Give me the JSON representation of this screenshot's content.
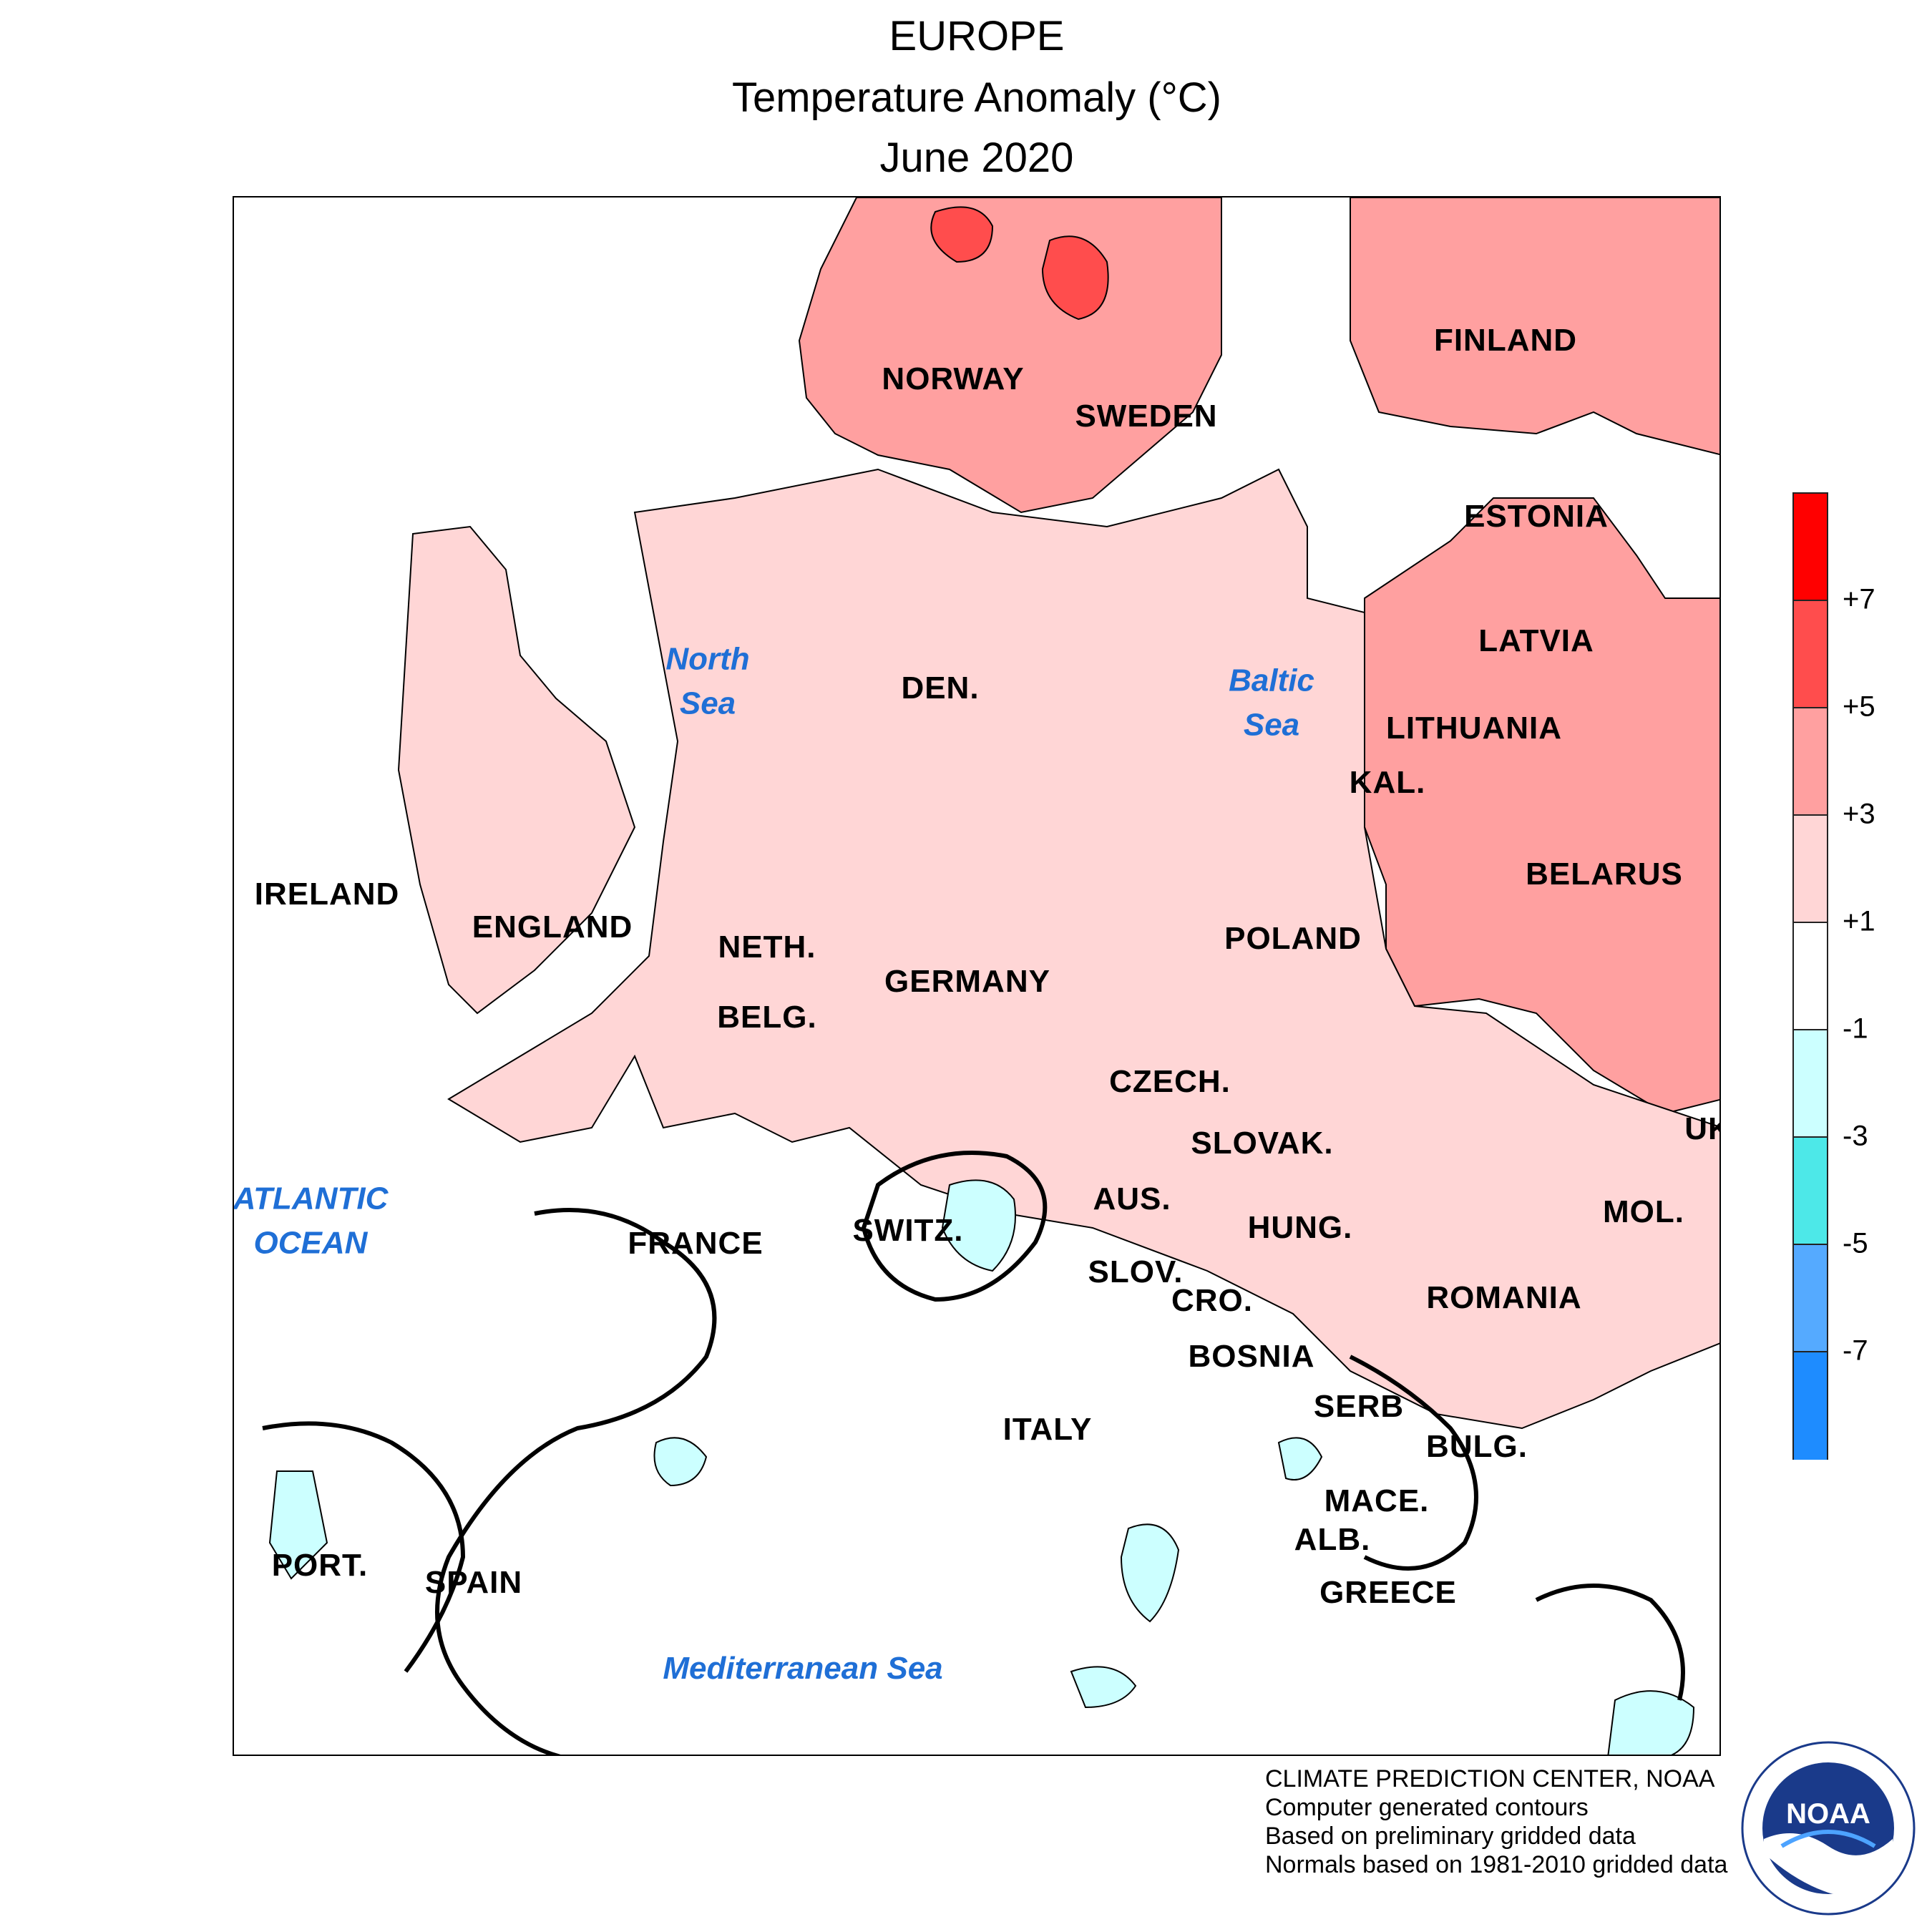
{
  "header": {
    "region": "EUROPE",
    "variable": "Temperature Anomaly (°C)",
    "period": "June 2020"
  },
  "map": {
    "countries": [
      {
        "key": "norway",
        "label": "NORWAY"
      },
      {
        "key": "sweden",
        "label": "SWEDEN"
      },
      {
        "key": "finland",
        "label": "FINLAND"
      },
      {
        "key": "estonia",
        "label": "ESTONIA"
      },
      {
        "key": "latvia",
        "label": "LATVIA"
      },
      {
        "key": "lithuania",
        "label": "LITHUANIA"
      },
      {
        "key": "kaliningrad",
        "label": "KAL."
      },
      {
        "key": "belarus",
        "label": "BELARUS"
      },
      {
        "key": "denmark",
        "label": "DEN."
      },
      {
        "key": "ireland",
        "label": "IRELAND"
      },
      {
        "key": "england",
        "label": "ENGLAND"
      },
      {
        "key": "netherlands",
        "label": "NETH."
      },
      {
        "key": "belgium",
        "label": "BELG."
      },
      {
        "key": "germany",
        "label": "GERMANY"
      },
      {
        "key": "poland",
        "label": "POLAND"
      },
      {
        "key": "czechia",
        "label": "CZECH."
      },
      {
        "key": "slovakia",
        "label": "SLOVAK."
      },
      {
        "key": "ukraine",
        "label": "UK"
      },
      {
        "key": "austria",
        "label": "AUS."
      },
      {
        "key": "hungary",
        "label": "HUNG."
      },
      {
        "key": "moldova",
        "label": "MOL."
      },
      {
        "key": "france",
        "label": "FRANCE"
      },
      {
        "key": "switzerland",
        "label": "SWITZ."
      },
      {
        "key": "slovenia",
        "label": "SLOV."
      },
      {
        "key": "croatia",
        "label": "CRO."
      },
      {
        "key": "romania",
        "label": "ROMANIA"
      },
      {
        "key": "bosnia",
        "label": "BOSNIA"
      },
      {
        "key": "serbia",
        "label": "SERB"
      },
      {
        "key": "bulgaria",
        "label": "BULG."
      },
      {
        "key": "italy",
        "label": "ITALY"
      },
      {
        "key": "macedonia",
        "label": "MACE."
      },
      {
        "key": "albania",
        "label": "ALB."
      },
      {
        "key": "greece",
        "label": "GREECE"
      },
      {
        "key": "portugal",
        "label": "PORT."
      },
      {
        "key": "spain",
        "label": "SPAIN"
      }
    ],
    "water_bodies": [
      {
        "key": "north-sea",
        "label": "North\nSea"
      },
      {
        "key": "baltic-sea",
        "label": "Baltic\nSea"
      },
      {
        "key": "atlantic-ocean",
        "label": "ATLANTIC\nOCEAN"
      },
      {
        "key": "mediterranean-sea",
        "label": "Mediterranean Sea"
      }
    ]
  },
  "legend": {
    "colors": [
      "#ff0000",
      "#ff4d4d",
      "#ffa0a0",
      "#ffd6d6",
      "#ffffff",
      "#ccffff",
      "#4de8e8",
      "#55aaff",
      "#1e8cff"
    ],
    "tick_labels": [
      "+7",
      "+5",
      "+3",
      "+1",
      "-1",
      "-3",
      "-5",
      "-7"
    ]
  },
  "credits": [
    "CLIMATE PREDICTION CENTER, NOAA",
    "Computer generated contours",
    "Based on preliminary gridded data",
    "Normals based on 1981-2010 gridded data"
  ],
  "logo": {
    "text": "NOAA"
  }
}
